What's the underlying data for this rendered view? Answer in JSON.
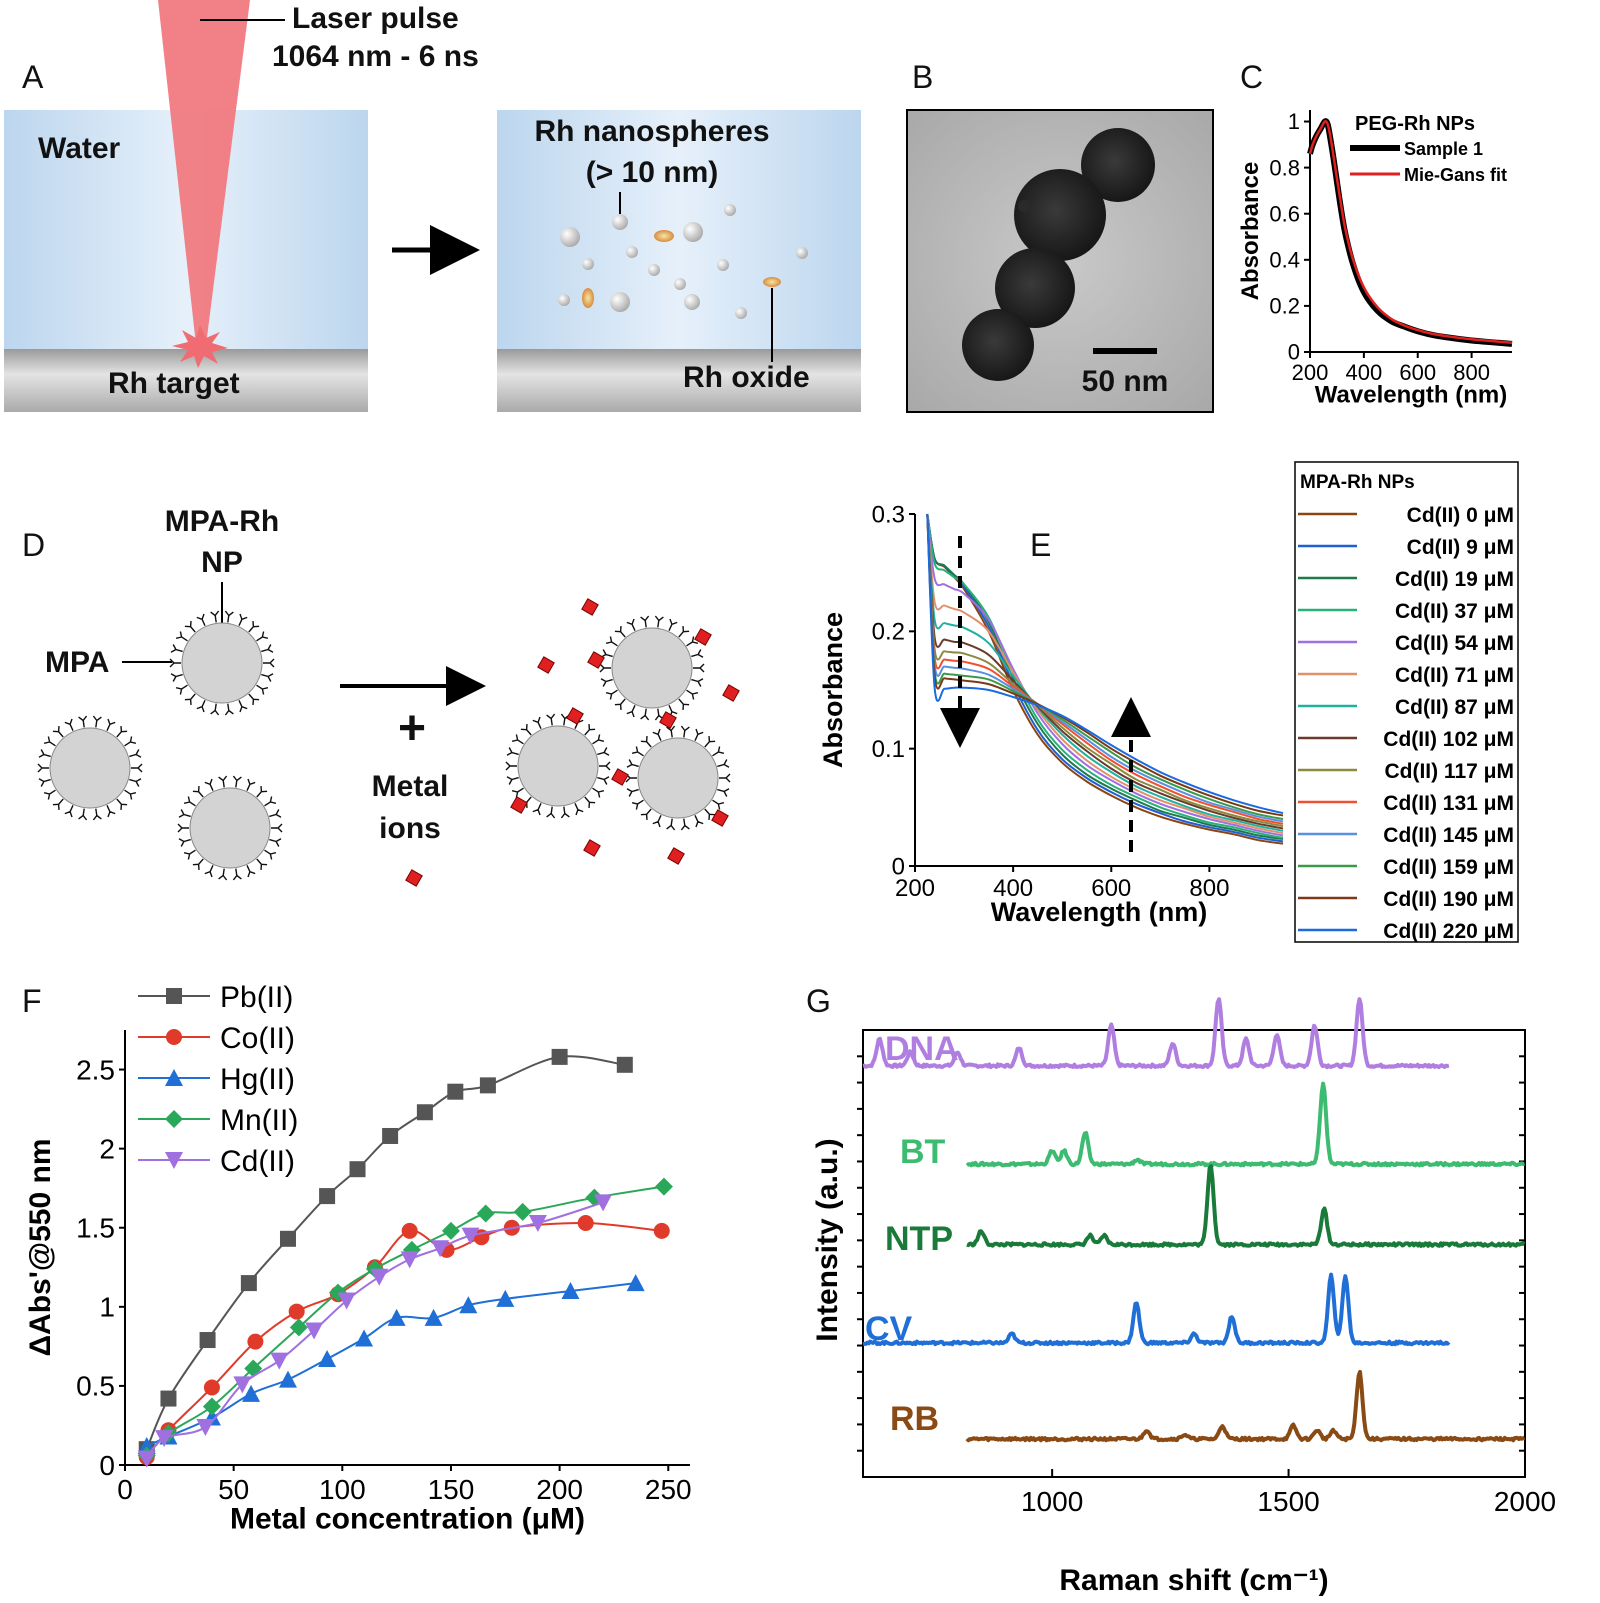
{
  "panel_labels": {
    "A": "A",
    "B": "B",
    "C": "C",
    "D": "D",
    "E": "E",
    "F": "F",
    "G": "G"
  },
  "panel_a": {
    "laser_line1": "Laser pulse",
    "laser_line2": "1064 nm - 6 ns",
    "water": "Water",
    "target": "Rh target",
    "nano_line1": "Rh nanospheres",
    "nano_line2": "(> 10 nm)",
    "oxide": "Rh oxide",
    "colors": {
      "water": "#c9def0",
      "laser": "#f07a80",
      "target": "#b9b9b9"
    }
  },
  "panel_b": {
    "scale_bar": "50 nm"
  },
  "panel_d": {
    "np_line1": "MPA-Rh",
    "np_line2": "NP",
    "mpa": "MPA",
    "plus": "+",
    "ions_line1": "Metal",
    "ions_line2": "ions",
    "colors": {
      "ion": "#e02020",
      "sphere": "#d3d3d3"
    }
  },
  "chart_data": [
    {
      "id": "C",
      "type": "line",
      "xlabel": "Wavelength (nm)",
      "ylabel": "Absorbance",
      "xlim": [
        200,
        950
      ],
      "ylim": [
        0,
        1.05
      ],
      "xticks": [
        200,
        400,
        600,
        800
      ],
      "yticks": [
        0,
        0.2,
        0.4,
        0.6,
        0.8,
        1
      ],
      "legend_title": "PEG-Rh NPs",
      "series": [
        {
          "name": "Sample 1",
          "color": "#000000",
          "x": [
            200,
            210,
            225,
            240,
            255,
            265,
            275,
            290,
            310,
            330,
            360,
            400,
            450,
            500,
            550,
            600,
            650,
            700,
            800,
            900,
            950
          ],
          "y": [
            0.86,
            0.9,
            0.94,
            0.97,
            1.0,
            0.99,
            0.93,
            0.82,
            0.66,
            0.52,
            0.38,
            0.26,
            0.18,
            0.135,
            0.11,
            0.09,
            0.075,
            0.065,
            0.05,
            0.04,
            0.035
          ]
        },
        {
          "name": "Mie-Gans fit",
          "color": "#e02020",
          "x": [
            200,
            210,
            225,
            240,
            255,
            265,
            275,
            290,
            310,
            330,
            360,
            400,
            450,
            500,
            550,
            600,
            650,
            700,
            800,
            900,
            950
          ],
          "y": [
            0.86,
            0.9,
            0.94,
            0.97,
            1.0,
            0.99,
            0.94,
            0.83,
            0.68,
            0.54,
            0.4,
            0.28,
            0.195,
            0.145,
            0.115,
            0.095,
            0.08,
            0.07,
            0.055,
            0.045,
            0.04
          ]
        }
      ]
    },
    {
      "id": "E",
      "type": "line",
      "xlabel": "Wavelength (nm)",
      "ylabel": "Absorbance",
      "xlim": [
        200,
        950
      ],
      "ylim": [
        0,
        0.3
      ],
      "xticks": [
        200,
        400,
        600,
        800
      ],
      "yticks": [
        0,
        0.1,
        0.2,
        0.3
      ],
      "legend_title": "MPA-Rh NPs",
      "x": [
        225,
        240,
        260,
        280,
        300,
        350,
        400,
        450,
        500,
        550,
        600,
        650,
        700,
        750,
        800,
        850,
        900,
        950
      ],
      "series": [
        {
          "name": "Cd(II) 0 μM",
          "color": "#8b4513",
          "y": [
            0.3,
            0.262,
            0.255,
            0.246,
            0.236,
            0.2,
            0.15,
            0.112,
            0.088,
            0.072,
            0.06,
            0.05,
            0.042,
            0.036,
            0.031,
            0.027,
            0.022,
            0.019
          ]
        },
        {
          "name": "Cd(II) 9 μM",
          "color": "#1f5fd6",
          "y": [
            0.3,
            0.262,
            0.256,
            0.247,
            0.238,
            0.204,
            0.155,
            0.116,
            0.091,
            0.075,
            0.063,
            0.053,
            0.045,
            0.038,
            0.033,
            0.029,
            0.024,
            0.021
          ]
        },
        {
          "name": "Cd(II) 19 μM",
          "color": "#1e7a4a",
          "y": [
            0.3,
            0.262,
            0.256,
            0.248,
            0.24,
            0.208,
            0.16,
            0.121,
            0.095,
            0.078,
            0.066,
            0.056,
            0.047,
            0.041,
            0.035,
            0.031,
            0.026,
            0.023
          ]
        },
        {
          "name": "Cd(II) 37 μM",
          "color": "#2ab07a",
          "y": [
            0.3,
            0.258,
            0.252,
            0.246,
            0.24,
            0.212,
            0.165,
            0.125,
            0.099,
            0.082,
            0.069,
            0.059,
            0.05,
            0.043,
            0.037,
            0.033,
            0.028,
            0.024
          ]
        },
        {
          "name": "Cd(II) 54 μM",
          "color": "#a070e0",
          "y": [
            0.3,
            0.245,
            0.24,
            0.236,
            0.232,
            0.21,
            0.168,
            0.13,
            0.104,
            0.086,
            0.073,
            0.062,
            0.053,
            0.046,
            0.04,
            0.035,
            0.03,
            0.026
          ]
        },
        {
          "name": "Cd(II) 71 μM",
          "color": "#e0906a",
          "y": [
            0.3,
            0.225,
            0.222,
            0.219,
            0.216,
            0.2,
            0.165,
            0.133,
            0.108,
            0.09,
            0.076,
            0.065,
            0.056,
            0.049,
            0.042,
            0.037,
            0.032,
            0.028
          ]
        },
        {
          "name": "Cd(II) 87 μM",
          "color": "#20b0a0",
          "y": [
            0.3,
            0.21,
            0.207,
            0.205,
            0.203,
            0.19,
            0.162,
            0.135,
            0.112,
            0.094,
            0.08,
            0.068,
            0.059,
            0.051,
            0.044,
            0.039,
            0.034,
            0.03
          ]
        },
        {
          "name": "Cd(II) 102 μM",
          "color": "#6b3a2a",
          "y": [
            0.3,
            0.195,
            0.193,
            0.191,
            0.19,
            0.18,
            0.158,
            0.136,
            0.115,
            0.098,
            0.083,
            0.071,
            0.062,
            0.054,
            0.047,
            0.041,
            0.036,
            0.032
          ]
        },
        {
          "name": "Cd(II) 117 μM",
          "color": "#8a8a40",
          "y": [
            0.3,
            0.185,
            0.183,
            0.182,
            0.181,
            0.173,
            0.155,
            0.137,
            0.118,
            0.101,
            0.087,
            0.074,
            0.065,
            0.056,
            0.049,
            0.043,
            0.038,
            0.034
          ]
        },
        {
          "name": "Cd(II) 131 μM",
          "color": "#f05030",
          "y": [
            0.3,
            0.178,
            0.176,
            0.175,
            0.174,
            0.168,
            0.153,
            0.138,
            0.121,
            0.105,
            0.09,
            0.078,
            0.068,
            0.059,
            0.052,
            0.046,
            0.04,
            0.036
          ]
        },
        {
          "name": "Cd(II) 145 μM",
          "color": "#5a90e0",
          "y": [
            0.3,
            0.172,
            0.17,
            0.169,
            0.168,
            0.163,
            0.151,
            0.138,
            0.123,
            0.108,
            0.093,
            0.081,
            0.071,
            0.062,
            0.054,
            0.048,
            0.042,
            0.038
          ]
        },
        {
          "name": "Cd(II) 159 μM",
          "color": "#3a9a4a",
          "y": [
            0.3,
            0.166,
            0.164,
            0.163,
            0.162,
            0.159,
            0.149,
            0.138,
            0.125,
            0.111,
            0.097,
            0.084,
            0.074,
            0.065,
            0.057,
            0.05,
            0.044,
            0.04
          ]
        },
        {
          "name": "Cd(II) 190 μM",
          "color": "#7a3a18",
          "y": [
            0.3,
            0.162,
            0.16,
            0.159,
            0.158,
            0.155,
            0.147,
            0.138,
            0.127,
            0.114,
            0.1,
            0.088,
            0.077,
            0.068,
            0.06,
            0.053,
            0.047,
            0.043
          ]
        },
        {
          "name": "Cd(II) 220 μM",
          "color": "#1a6ae0",
          "y": [
            0.3,
            0.152,
            0.151,
            0.152,
            0.152,
            0.15,
            0.144,
            0.137,
            0.128,
            0.116,
            0.103,
            0.091,
            0.08,
            0.071,
            0.063,
            0.056,
            0.05,
            0.045
          ]
        }
      ]
    },
    {
      "id": "F",
      "type": "line",
      "xlabel": "Metal concentration (μM)",
      "ylabel": "ΔAbs'@550 nm",
      "xlim": [
        0,
        260
      ],
      "ylim": [
        0,
        2.75
      ],
      "xticks": [
        0,
        50,
        100,
        150,
        200,
        250
      ],
      "yticks": [
        0,
        0.5,
        1,
        1.5,
        2,
        2.5
      ],
      "ytick_labels": [
        "0",
        "0.5",
        "1",
        "1.5",
        "2",
        "2.5"
      ],
      "legend_position": "top-left",
      "series": [
        {
          "name": "Pb(II)",
          "color": "#555555",
          "marker": "square",
          "x": [
            10,
            20,
            38,
            57,
            75,
            93,
            107,
            122,
            138,
            152,
            167,
            200,
            230
          ],
          "y": [
            0.1,
            0.42,
            0.79,
            1.15,
            1.43,
            1.7,
            1.87,
            2.08,
            2.23,
            2.36,
            2.4,
            2.58,
            2.53
          ]
        },
        {
          "name": "Co(II)",
          "color": "#e03a2a",
          "marker": "circle",
          "x": [
            10,
            20,
            40,
            60,
            79,
            98,
            115,
            131,
            148,
            164,
            178,
            212,
            247
          ],
          "y": [
            0.05,
            0.22,
            0.49,
            0.78,
            0.97,
            1.08,
            1.25,
            1.48,
            1.36,
            1.44,
            1.5,
            1.53,
            1.48
          ]
        },
        {
          "name": "Hg(II)",
          "color": "#1f6fd6",
          "marker": "triangle-up",
          "x": [
            10,
            20,
            40,
            58,
            75,
            93,
            110,
            125,
            142,
            158,
            175,
            205,
            235
          ],
          "y": [
            0.12,
            0.18,
            0.3,
            0.45,
            0.54,
            0.67,
            0.8,
            0.93,
            0.93,
            1.01,
            1.05,
            1.1,
            1.15
          ]
        },
        {
          "name": "Mn(II)",
          "color": "#2aa85a",
          "marker": "diamond",
          "x": [
            10,
            20,
            40,
            59,
            80,
            98,
            115,
            132,
            150,
            166,
            183,
            216,
            248
          ],
          "y": [
            0.06,
            0.2,
            0.37,
            0.61,
            0.87,
            1.09,
            1.24,
            1.36,
            1.48,
            1.59,
            1.6,
            1.69,
            1.76
          ]
        },
        {
          "name": "Cd(II)",
          "color": "#a070e0",
          "marker": "triangle-down",
          "x": [
            10,
            18,
            37,
            54,
            71,
            87,
            102,
            117,
            131,
            145,
            159,
            190,
            220
          ],
          "y": [
            0.04,
            0.17,
            0.24,
            0.51,
            0.66,
            0.85,
            1.04,
            1.19,
            1.3,
            1.37,
            1.45,
            1.53,
            1.66
          ]
        }
      ]
    },
    {
      "id": "G",
      "type": "line",
      "xlabel": "Raman shift (cm⁻¹)",
      "ylabel": "Intensity (a.u.)",
      "xlim": [
        600,
        2000
      ],
      "xticks": [
        1000,
        1500,
        2000
      ],
      "yticks_count": 16,
      "series": [
        {
          "name": "DNA",
          "color": "#b07ee0",
          "baseline": 0.92,
          "x_range": [
            600,
            1840
          ],
          "peaks": [
            [
              635,
              0.06
            ],
            [
              700,
              0.03
            ],
            [
              800,
              0.03
            ],
            [
              930,
              0.04
            ],
            [
              1125,
              0.09
            ],
            [
              1255,
              0.05
            ],
            [
              1352,
              0.15
            ],
            [
              1410,
              0.06
            ],
            [
              1475,
              0.07
            ],
            [
              1555,
              0.09
            ],
            [
              1650,
              0.15
            ]
          ]
        },
        {
          "name": "BT",
          "color": "#3dbb70",
          "baseline": 0.7,
          "x_range": [
            820,
            2000
          ],
          "peaks": [
            [
              1000,
              0.03
            ],
            [
              1025,
              0.03
            ],
            [
              1070,
              0.07
            ],
            [
              1180,
              0.01
            ],
            [
              1573,
              0.18
            ]
          ]
        },
        {
          "name": "NTP",
          "color": "#1a7a3a",
          "baseline": 0.52,
          "x_range": [
            820,
            2000
          ],
          "peaks": [
            [
              850,
              0.03
            ],
            [
              1080,
              0.02
            ],
            [
              1110,
              0.02
            ],
            [
              1335,
              0.18
            ],
            [
              1575,
              0.08
            ]
          ]
        },
        {
          "name": "CV",
          "color": "#1f6fd6",
          "baseline": 0.3,
          "x_range": [
            600,
            1840
          ],
          "peaks": [
            [
              915,
              0.02
            ],
            [
              1178,
              0.09
            ],
            [
              1300,
              0.02
            ],
            [
              1380,
              0.06
            ],
            [
              1590,
              0.15
            ],
            [
              1620,
              0.15
            ]
          ]
        },
        {
          "name": "RB",
          "color": "#8a4a14",
          "baseline": 0.085,
          "x_range": [
            820,
            2000
          ],
          "peaks": [
            [
              1200,
              0.02
            ],
            [
              1280,
              0.01
            ],
            [
              1360,
              0.03
            ],
            [
              1510,
              0.03
            ],
            [
              1560,
              0.02
            ],
            [
              1595,
              0.02
            ],
            [
              1650,
              0.15
            ]
          ]
        }
      ]
    }
  ]
}
